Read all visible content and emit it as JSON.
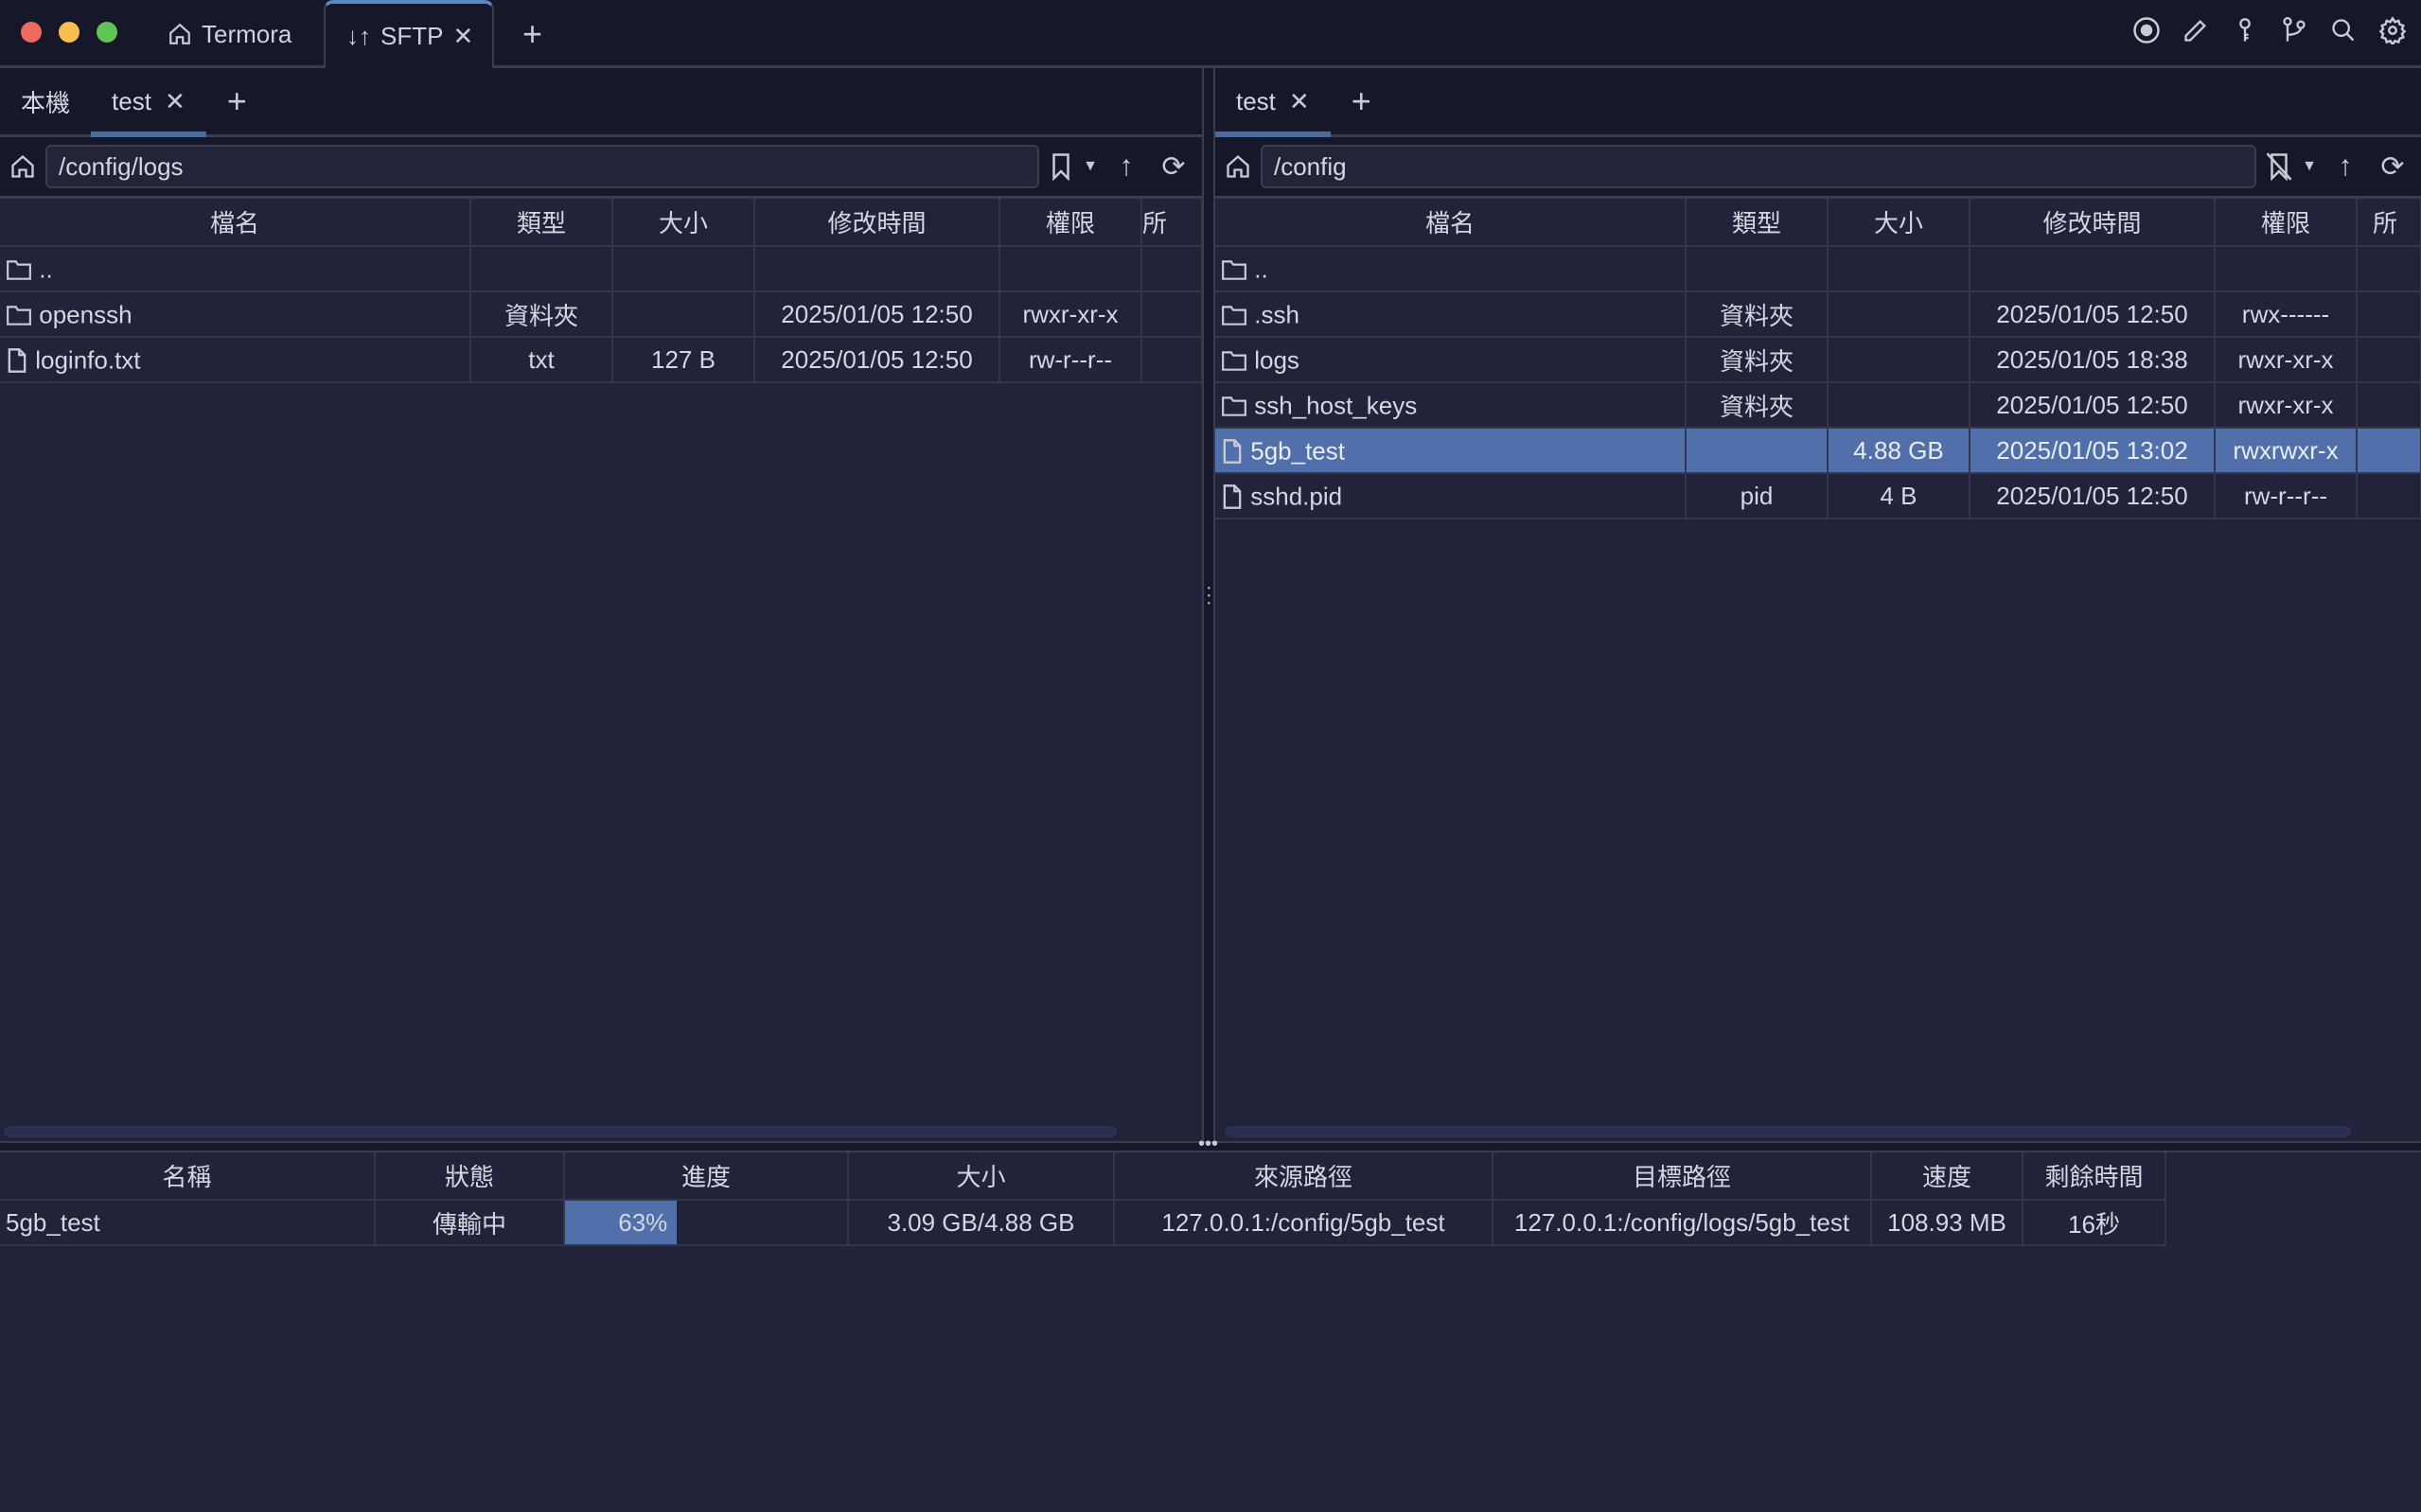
{
  "window": {
    "tabs": [
      {
        "label": "Termora",
        "icon": "home-icon"
      },
      {
        "label": "SFTP",
        "icon": "transfer-arrows-icon"
      }
    ],
    "toolbar_icons": [
      "record-icon",
      "pencil-icon",
      "key-icon",
      "git-branch-icon",
      "search-icon",
      "gear-icon"
    ]
  },
  "left": {
    "tabs": [
      {
        "label": "本機"
      },
      {
        "label": "test",
        "active": true
      }
    ],
    "path": "/config/logs",
    "columns": [
      "檔名",
      "類型",
      "大小",
      "修改時間",
      "權限",
      "所"
    ],
    "rows": [
      {
        "name": "..",
        "type": "",
        "size": "",
        "mtime": "",
        "perm": "",
        "icon": "folder-icon"
      },
      {
        "name": "openssh",
        "type": "資料夾",
        "size": "",
        "mtime": "2025/01/05 12:50",
        "perm": "rwxr-xr-x",
        "icon": "folder-icon"
      },
      {
        "name": "loginfo.txt",
        "type": "txt",
        "size": "127 B",
        "mtime": "2025/01/05 12:50",
        "perm": "rw-r--r--",
        "icon": "file-icon"
      }
    ]
  },
  "right": {
    "tabs": [
      {
        "label": "test",
        "active": true
      }
    ],
    "path": "/config",
    "columns": [
      "檔名",
      "類型",
      "大小",
      "修改時間",
      "權限",
      "所"
    ],
    "rows": [
      {
        "name": "..",
        "type": "",
        "size": "",
        "mtime": "",
        "perm": "",
        "icon": "folder-icon"
      },
      {
        "name": ".ssh",
        "type": "資料夾",
        "size": "",
        "mtime": "2025/01/05 12:50",
        "perm": "rwx------",
        "icon": "folder-icon"
      },
      {
        "name": "logs",
        "type": "資料夾",
        "size": "",
        "mtime": "2025/01/05 18:38",
        "perm": "rwxr-xr-x",
        "icon": "folder-icon"
      },
      {
        "name": "ssh_host_keys",
        "type": "資料夾",
        "size": "",
        "mtime": "2025/01/05 12:50",
        "perm": "rwxr-xr-x",
        "icon": "folder-icon"
      },
      {
        "name": "5gb_test",
        "type": "",
        "size": "4.88 GB",
        "mtime": "2025/01/05 13:02",
        "perm": "rwxrwxr-x",
        "icon": "file-icon",
        "selected": true
      },
      {
        "name": "sshd.pid",
        "type": "pid",
        "size": "4 B",
        "mtime": "2025/01/05 12:50",
        "perm": "rw-r--r--",
        "icon": "file-icon"
      }
    ]
  },
  "transfers": {
    "columns": [
      "名稱",
      "狀態",
      "進度",
      "大小",
      "來源路徑",
      "目標路徑",
      "速度",
      "剩餘時間"
    ],
    "rows": [
      {
        "name": "5gb_test",
        "status": "傳輸中",
        "progress": 63,
        "progress_label": "63%",
        "size": "3.09 GB/4.88 GB",
        "source": "127.0.0.1:/config/5gb_test",
        "target": "127.0.0.1:/config/logs/5gb_test",
        "speed": "108.93 MB",
        "remaining": "16秒"
      }
    ]
  },
  "colors": {
    "accent": "#5b86c9",
    "selected_row": "#5170ab",
    "background": "#20233a",
    "titlebar": "#161829"
  }
}
